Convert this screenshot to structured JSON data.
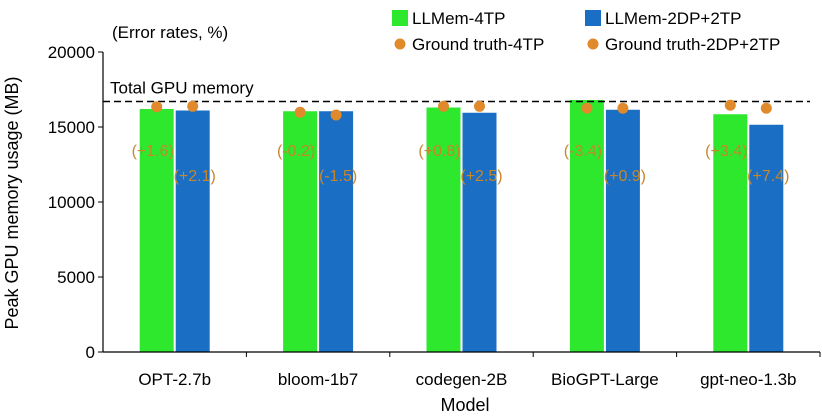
{
  "chart_data": {
    "type": "bar",
    "note": "(Error rates, %)",
    "xlabel": "Model",
    "ylabel": "Peak GPU memory usage (MB)",
    "ylim": [
      0,
      20000
    ],
    "yticks": [
      "0",
      "5000",
      "10000",
      "15000",
      "20000"
    ],
    "categories": [
      "OPT-2.7b",
      "bloom-1b7",
      "codegen-2B",
      "BioGPT-Large",
      "gpt-neo-1.3b"
    ],
    "series": [
      {
        "name": "LLMem-4TP",
        "kind": "bar",
        "color": "#2ee82e",
        "values": [
          16200,
          16050,
          16300,
          16800,
          15850
        ]
      },
      {
        "name": "LLMem-2DP+2TP",
        "kind": "bar",
        "color": "#1a6fc4",
        "values": [
          16100,
          16050,
          15950,
          16150,
          15150
        ]
      },
      {
        "name": "Ground truth-4TP",
        "kind": "point",
        "color": "#e08a2c",
        "values": [
          16350,
          15980,
          16380,
          16250,
          16450
        ]
      },
      {
        "name": "Ground truth-2DP+2TP",
        "kind": "point",
        "color": "#e08a2c",
        "values": [
          16380,
          15800,
          16380,
          16250,
          16250
        ]
      }
    ],
    "error_labels_4tp": [
      "(+1.6)",
      "(-0.2)",
      "(+0.8)",
      "(-3.4)",
      "(+3.4)"
    ],
    "error_labels_2dp": [
      "(+2.1)",
      "(-1.5)",
      "(+2.5)",
      "(+0.9)",
      "(+7.4)"
    ],
    "reference_line": {
      "label": "Total GPU memory",
      "value": 16700
    },
    "legend_placement": "top-right"
  }
}
